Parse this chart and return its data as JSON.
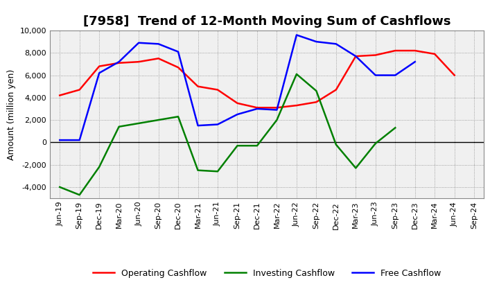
{
  "title": "[7958]  Trend of 12-Month Moving Sum of Cashflows",
  "ylabel": "Amount (million yen)",
  "ylim": [
    -5000,
    10000
  ],
  "yticks": [
    -4000,
    -2000,
    0,
    2000,
    4000,
    6000,
    8000,
    10000
  ],
  "x_labels": [
    "Jun-19",
    "Sep-19",
    "Dec-19",
    "Mar-20",
    "Jun-20",
    "Sep-20",
    "Dec-20",
    "Mar-21",
    "Jun-21",
    "Sep-21",
    "Dec-21",
    "Mar-22",
    "Jun-22",
    "Sep-22",
    "Dec-22",
    "Mar-23",
    "Jun-23",
    "Sep-23",
    "Dec-23",
    "Mar-24",
    "Jun-24",
    "Sep-24"
  ],
  "operating_cashflow": [
    4200,
    4700,
    6800,
    7100,
    7200,
    7500,
    6700,
    5000,
    4700,
    3500,
    3100,
    3100,
    3300,
    3600,
    4700,
    7700,
    7800,
    8200,
    8200,
    7900,
    6000,
    null
  ],
  "investing_cashflow": [
    -4000,
    -4700,
    -2200,
    1400,
    1700,
    2000,
    2300,
    -2500,
    -2600,
    -300,
    -300,
    2000,
    6100,
    4600,
    -200,
    -2300,
    -100,
    1300,
    null,
    null,
    null,
    null
  ],
  "free_cashflow": [
    200,
    200,
    6200,
    7200,
    8900,
    8800,
    8100,
    1500,
    1600,
    2500,
    3000,
    2900,
    9600,
    9000,
    8800,
    7700,
    6000,
    6000,
    7200,
    null,
    null,
    null
  ],
  "operating_color": "#ff0000",
  "investing_color": "#008000",
  "free_color": "#0000ff",
  "background_color": "#ffffff",
  "plot_bg_color": "#f0f0f0",
  "grid_color": "#888888",
  "line_width": 1.8,
  "title_fontsize": 13,
  "tick_fontsize": 8,
  "ylabel_fontsize": 9,
  "legend_labels": [
    "Operating Cashflow",
    "Investing Cashflow",
    "Free Cashflow"
  ]
}
